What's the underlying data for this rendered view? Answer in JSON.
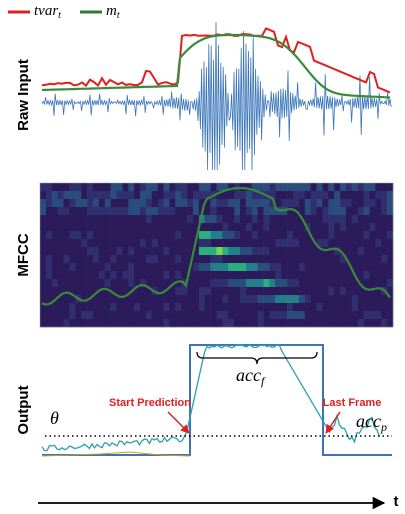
{
  "legend": [
    {
      "name": "tvar",
      "sub": "t"
    },
    {
      "name": "m",
      "sub": "t"
    }
  ],
  "panels": [
    "Raw Input",
    "MFCC",
    "Output"
  ],
  "annotations": {
    "start": "Start Prediction",
    "last": "Last Frame",
    "acc_f": "acc",
    "acc_f_sub": "f",
    "acc_p": "acc",
    "acc_p_sub": "p",
    "theta": "θ"
  },
  "axis_label": "t"
}
